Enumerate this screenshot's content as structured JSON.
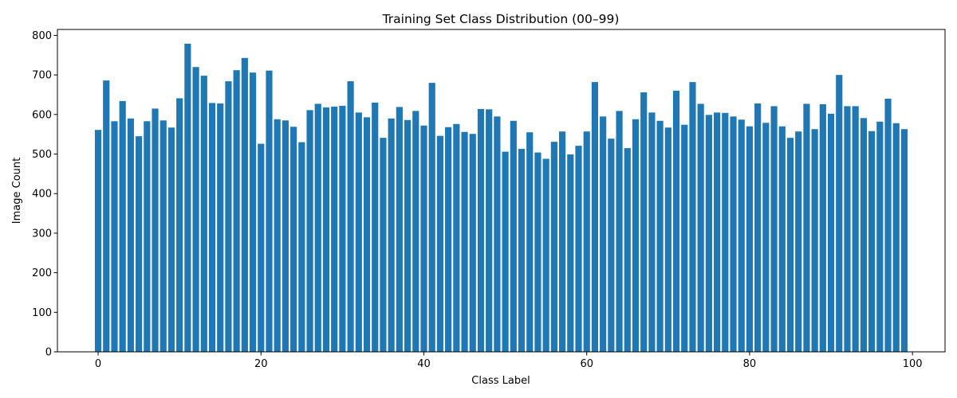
{
  "chart_data": {
    "type": "bar",
    "title": "Training Set Class Distribution (00–99)",
    "xlabel": "Class Label",
    "ylabel": "Image Count",
    "xlim": [
      -5,
      104
    ],
    "ylim": [
      0,
      815
    ],
    "xticks": [
      0,
      20,
      40,
      60,
      80,
      100
    ],
    "yticks": [
      0,
      100,
      200,
      300,
      400,
      500,
      600,
      700,
      800
    ],
    "color": "#1f77b4",
    "grid": false,
    "x": [
      0,
      1,
      2,
      3,
      4,
      5,
      6,
      7,
      8,
      9,
      10,
      11,
      12,
      13,
      14,
      15,
      16,
      17,
      18,
      19,
      20,
      21,
      22,
      23,
      24,
      25,
      26,
      27,
      28,
      29,
      30,
      31,
      32,
      33,
      34,
      35,
      36,
      37,
      38,
      39,
      40,
      41,
      42,
      43,
      44,
      45,
      46,
      47,
      48,
      49,
      50,
      51,
      52,
      53,
      54,
      55,
      56,
      57,
      58,
      59,
      60,
      61,
      62,
      63,
      64,
      65,
      66,
      67,
      68,
      69,
      70,
      71,
      72,
      73,
      74,
      75,
      76,
      77,
      78,
      79,
      80,
      81,
      82,
      83,
      84,
      85,
      86,
      87,
      88,
      89,
      90,
      91,
      92,
      93,
      94,
      95,
      96,
      97,
      98,
      99
    ],
    "values": [
      561,
      686,
      583,
      634,
      590,
      545,
      583,
      615,
      585,
      567,
      641,
      779,
      720,
      698,
      629,
      628,
      684,
      712,
      743,
      706,
      526,
      711,
      588,
      585,
      569,
      530,
      611,
      627,
      618,
      620,
      622,
      684,
      605,
      593,
      630,
      541,
      590,
      619,
      586,
      609,
      572,
      680,
      546,
      568,
      576,
      556,
      551,
      614,
      613,
      595,
      506,
      584,
      513,
      555,
      504,
      488,
      531,
      557,
      499,
      521,
      557,
      682,
      595,
      539,
      609,
      515,
      588,
      656,
      605,
      584,
      567,
      660,
      574,
      682,
      627,
      599,
      605,
      604,
      595,
      587,
      570,
      628,
      579,
      621,
      570,
      541,
      557,
      627,
      563,
      626,
      602,
      700,
      621,
      621,
      591,
      558,
      582,
      640,
      578,
      563
    ]
  }
}
